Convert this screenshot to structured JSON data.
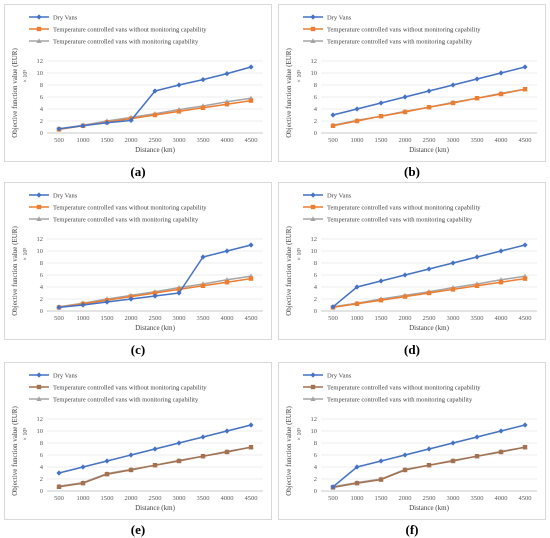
{
  "chart_data": [
    {
      "type": "line",
      "panel_label": "(a)",
      "xlabel": "Distance (km)",
      "ylabel": "Objective function value (EUR)",
      "y_exponent": "× 10⁵",
      "categories": [
        500,
        1000,
        1500,
        2000,
        2500,
        3000,
        3500,
        4000,
        4500
      ],
      "yticks": [
        0,
        2,
        4,
        6,
        8,
        10,
        12
      ],
      "ylim": [
        0,
        12
      ],
      "legend_position": "top-left",
      "series": [
        {
          "name": "Dry Vans",
          "color": "#4472c4",
          "marker": "diamond",
          "values": [
            0.7,
            1.2,
            1.7,
            2.1,
            7.0,
            8.0,
            8.9,
            9.9,
            11.0
          ]
        },
        {
          "name": "Temperature controlled vans without monitoring capability",
          "color": "#ed7d31",
          "marker": "square",
          "values": [
            0.6,
            1.2,
            1.8,
            2.4,
            3.0,
            3.6,
            4.2,
            4.8,
            5.4
          ]
        },
        {
          "name": "Temperature controlled vans with monitoring capability",
          "color": "#a5a5a5",
          "marker": "triangle",
          "values": [
            0.7,
            1.3,
            2.0,
            2.6,
            3.2,
            3.9,
            4.5,
            5.2,
            5.8
          ]
        }
      ]
    },
    {
      "type": "line",
      "panel_label": "(b)",
      "xlabel": "Distance (km)",
      "ylabel": "Objective function value (EUR)",
      "y_exponent": "× 10⁵",
      "categories": [
        500,
        1000,
        1500,
        2000,
        2500,
        3000,
        3500,
        4000,
        4500
      ],
      "yticks": [
        0,
        2,
        4,
        6,
        8,
        10,
        12
      ],
      "ylim": [
        0,
        12
      ],
      "legend_position": "top-left",
      "series": [
        {
          "name": "Dry Vans",
          "color": "#4472c4",
          "marker": "diamond",
          "values": [
            3.0,
            4.0,
            5.0,
            6.0,
            7.0,
            8.0,
            9.0,
            10.0,
            11.0
          ]
        },
        {
          "name": "Temperature controlled vans without monitoring capability",
          "color": "#ed7d31",
          "marker": "square",
          "values": [
            1.2,
            2.0,
            2.8,
            3.5,
            4.3,
            5.0,
            5.8,
            6.5,
            7.3
          ]
        },
        {
          "name": "Temperature controlled vans with monitoring capability",
          "color": "#a5a5a5",
          "marker": "triangle",
          "values": [
            1.3,
            2.1,
            2.8,
            3.6,
            4.3,
            5.1,
            5.8,
            6.6,
            7.3
          ]
        }
      ]
    },
    {
      "type": "line",
      "panel_label": "(c)",
      "xlabel": "Distance (km)",
      "ylabel": "Objective function value (EUR)",
      "y_exponent": "× 10⁵",
      "categories": [
        500,
        1000,
        1500,
        2000,
        2500,
        3000,
        3500,
        4000,
        4500
      ],
      "yticks": [
        0,
        2,
        4,
        6,
        8,
        10,
        12
      ],
      "ylim": [
        0,
        12
      ],
      "legend_position": "top-left",
      "series": [
        {
          "name": "Dry Vans",
          "color": "#4472c4",
          "marker": "diamond",
          "values": [
            0.6,
            1.0,
            1.5,
            2.0,
            2.5,
            3.0,
            9.0,
            10.0,
            11.0
          ]
        },
        {
          "name": "Temperature controlled vans without monitoring capability",
          "color": "#ed7d31",
          "marker": "square",
          "values": [
            0.6,
            1.2,
            1.8,
            2.4,
            3.0,
            3.6,
            4.2,
            4.8,
            5.4
          ]
        },
        {
          "name": "Temperature controlled vans with monitoring capability",
          "color": "#a5a5a5",
          "marker": "triangle",
          "values": [
            0.7,
            1.3,
            2.0,
            2.6,
            3.2,
            3.9,
            4.5,
            5.2,
            5.8
          ]
        }
      ]
    },
    {
      "type": "line",
      "panel_label": "(d)",
      "xlabel": "Distance (km)",
      "ylabel": "Objective function value (EUR)",
      "y_exponent": "× 10⁵",
      "categories": [
        500,
        1000,
        1500,
        2000,
        2500,
        3000,
        3500,
        4000,
        4500
      ],
      "yticks": [
        0,
        2,
        4,
        6,
        8,
        10,
        12
      ],
      "ylim": [
        0,
        12
      ],
      "legend_position": "top-left",
      "series": [
        {
          "name": "Dry Vans",
          "color": "#4472c4",
          "marker": "diamond",
          "values": [
            0.7,
            4.0,
            5.0,
            6.0,
            7.0,
            8.0,
            9.0,
            10.0,
            11.0
          ]
        },
        {
          "name": "Temperature controlled vans without monitoring capability",
          "color": "#ed7d31",
          "marker": "square",
          "values": [
            0.6,
            1.2,
            1.8,
            2.4,
            3.0,
            3.6,
            4.2,
            4.8,
            5.4
          ]
        },
        {
          "name": "Temperature controlled vans with monitoring capability",
          "color": "#a5a5a5",
          "marker": "triangle",
          "values": [
            0.7,
            1.3,
            2.0,
            2.6,
            3.2,
            3.9,
            4.5,
            5.2,
            5.8
          ]
        }
      ]
    },
    {
      "type": "line",
      "panel_label": "(e)",
      "xlabel": "Distance (km)",
      "ylabel": "Objective function value (EUR)",
      "y_exponent": "× 10⁵",
      "categories": [
        500,
        1000,
        1500,
        2000,
        2500,
        3000,
        3500,
        4000,
        4500
      ],
      "yticks": [
        0,
        2,
        4,
        6,
        8,
        10,
        12
      ],
      "ylim": [
        0,
        12
      ],
      "legend_position": "top-left",
      "series": [
        {
          "name": "Dry Vans",
          "color": "#4472c4",
          "marker": "diamond",
          "values": [
            3.0,
            4.0,
            5.0,
            6.0,
            7.0,
            8.0,
            9.0,
            10.0,
            11.0
          ]
        },
        {
          "name": "Temperature controlled vans without monitoring capability",
          "color": "#a5714f",
          "marker": "square",
          "values": [
            0.7,
            1.3,
            2.8,
            3.5,
            4.3,
            5.0,
            5.8,
            6.5,
            7.3
          ]
        },
        {
          "name": "Temperature controlled vans with monitoring capability",
          "color": "#a5a5a5",
          "marker": "triangle",
          "values": [
            0.8,
            1.4,
            2.9,
            3.6,
            4.3,
            5.1,
            5.8,
            6.6,
            7.3
          ]
        }
      ]
    },
    {
      "type": "line",
      "panel_label": "(f)",
      "xlabel": "Distance (km)",
      "ylabel": "Objective function value (EUR)",
      "y_exponent": "× 10⁵",
      "categories": [
        500,
        1000,
        1500,
        2000,
        2500,
        3000,
        3500,
        4000,
        4500
      ],
      "yticks": [
        0,
        2,
        4,
        6,
        8,
        10,
        12
      ],
      "ylim": [
        0,
        12
      ],
      "legend_position": "top-left",
      "series": [
        {
          "name": "Dry Vans",
          "color": "#4472c4",
          "marker": "diamond",
          "values": [
            0.7,
            4.0,
            5.0,
            6.0,
            7.0,
            8.0,
            9.0,
            10.0,
            11.0
          ]
        },
        {
          "name": "Temperature controlled vans without monitoring capability",
          "color": "#a5714f",
          "marker": "square",
          "values": [
            0.6,
            1.3,
            1.9,
            3.5,
            4.3,
            5.0,
            5.8,
            6.5,
            7.3
          ]
        },
        {
          "name": "Temperature controlled vans with monitoring capability",
          "color": "#a5a5a5",
          "marker": "triangle",
          "values": [
            0.7,
            1.4,
            2.0,
            3.6,
            4.3,
            5.1,
            5.8,
            6.6,
            7.3
          ]
        }
      ]
    }
  ]
}
